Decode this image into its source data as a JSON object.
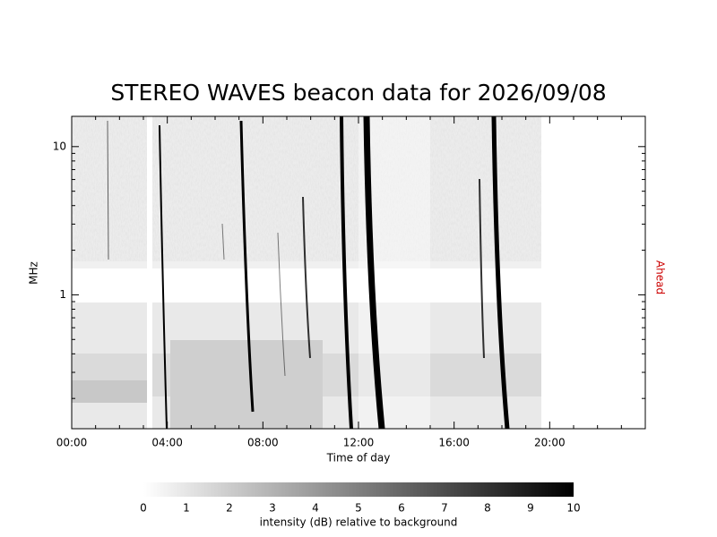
{
  "chart_data": {
    "type": "spectrogram",
    "title": "STEREO WAVES beacon data for 2026/09/08",
    "x_label": "Time of day",
    "y_label": "MHz",
    "side_label": "Ahead",
    "side_label_color": "#cc0000",
    "xlim": [
      0,
      24
    ],
    "xticks": [
      {
        "value": 0,
        "label": "00:00"
      },
      {
        "value": 4,
        "label": "04:00"
      },
      {
        "value": 8,
        "label": "08:00"
      },
      {
        "value": 12,
        "label": "12:00"
      },
      {
        "value": 16,
        "label": "16:00"
      },
      {
        "value": 20,
        "label": "20:00"
      }
    ],
    "xminorticks": [
      1,
      2,
      3,
      5,
      6,
      7,
      9,
      10,
      11,
      13,
      14,
      15,
      17,
      18,
      19,
      21,
      22,
      23
    ],
    "ylim": [
      0.125,
      16
    ],
    "y_log": true,
    "yticks": [
      1,
      10
    ],
    "yminorticks": [
      0.2,
      0.3,
      0.4,
      0.5,
      0.6,
      0.7,
      0.8,
      0.9,
      2,
      3,
      4,
      5,
      6,
      7,
      8,
      9
    ],
    "colorbar": {
      "label": "intensity (dB) relative to background",
      "lim": [
        0,
        10
      ],
      "ticks": [
        0,
        1,
        2,
        3,
        4,
        5,
        6,
        7,
        8,
        9,
        10
      ]
    }
  }
}
